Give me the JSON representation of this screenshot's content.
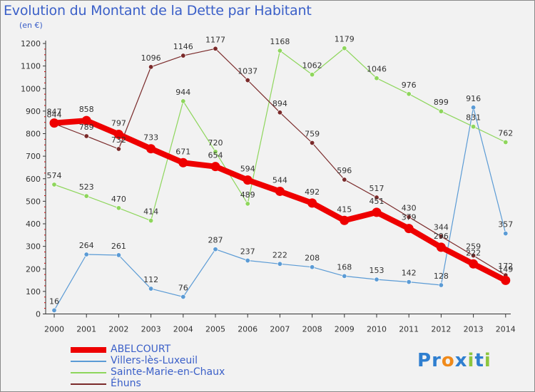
{
  "title": "Evolution du Montant de la Dette par Habitant",
  "unit_label": "(en €)",
  "brand": {
    "text": "Proxiti",
    "letters": [
      "P",
      "r",
      "o",
      "x",
      "i",
      "t",
      "i"
    ],
    "colors": [
      "#2f7fd0",
      "#2f7fd0",
      "#f08a1a",
      "#2f7fd0",
      "#8dc63f",
      "#2f7fd0",
      "#8dc63f"
    ]
  },
  "chart_data": {
    "type": "line",
    "title": "Evolution du Montant de la Dette par Habitant",
    "ylabel": "(en €)",
    "ylim": [
      0,
      1200
    ],
    "yticks": [
      0,
      100,
      200,
      300,
      400,
      500,
      600,
      700,
      800,
      900,
      1000,
      1100,
      1200
    ],
    "x": [
      "2000",
      "2001",
      "2002",
      "2003",
      "2004",
      "2005",
      "2006",
      "2007",
      "2008",
      "2009",
      "2010",
      "2011",
      "2012",
      "2013",
      "2014"
    ],
    "series": [
      {
        "name": "Villers-lès-Luxeuil",
        "color": "#5b9bd5",
        "width": 1.2,
        "marker": 3.2,
        "values": [
          16,
          264,
          261,
          112,
          76,
          287,
          237,
          222,
          208,
          168,
          153,
          142,
          128,
          916,
          357
        ],
        "labels": [
          "16",
          "264",
          "261",
          "112",
          "76",
          "287",
          "237",
          "222",
          "208",
          "168",
          "153",
          "142",
          "128",
          "916",
          "357"
        ]
      },
      {
        "name": "Sainte-Marie-en-Chaux",
        "color": "#8ed65c",
        "width": 1.2,
        "marker": 3.2,
        "values": [
          574,
          523,
          470,
          414,
          944,
          720,
          489,
          1168,
          1062,
          1179,
          1046,
          976,
          899,
          831,
          762
        ],
        "labels": [
          "574",
          "523",
          "470",
          "414",
          "944",
          "720",
          "489",
          "1168",
          "1062",
          "1179",
          "1046",
          "976",
          "899",
          "831",
          "762"
        ]
      },
      {
        "name": "Éhuns",
        "color": "#7a2a2a",
        "width": 1.2,
        "marker": 3.2,
        "values": [
          844,
          789,
          732,
          1096,
          1146,
          1177,
          1037,
          894,
          759,
          596,
          517,
          430,
          344,
          259,
          172
        ],
        "labels": [
          "844",
          "789",
          "732",
          "1096",
          "1146",
          "1177",
          "1037",
          "894",
          "759",
          "596",
          "517",
          "430",
          "344",
          "259",
          "172"
        ]
      },
      {
        "name": "ABELCOURT",
        "color": "#ee0000",
        "width": 8,
        "marker": 6.5,
        "values": [
          847,
          858,
          797,
          733,
          671,
          654,
          594,
          544,
          492,
          415,
          451,
          379,
          296,
          222,
          149
        ],
        "labels": [
          "847",
          "858",
          "797",
          "733",
          "671",
          "654",
          "594",
          "544",
          "492",
          "415",
          "451",
          "379",
          "296",
          "222",
          "149"
        ]
      }
    ],
    "legend_order": [
      "ABELCOURT",
      "Villers-lès-Luxeuil",
      "Sainte-Marie-en-Chaux",
      "Éhuns"
    ],
    "grid": false
  }
}
